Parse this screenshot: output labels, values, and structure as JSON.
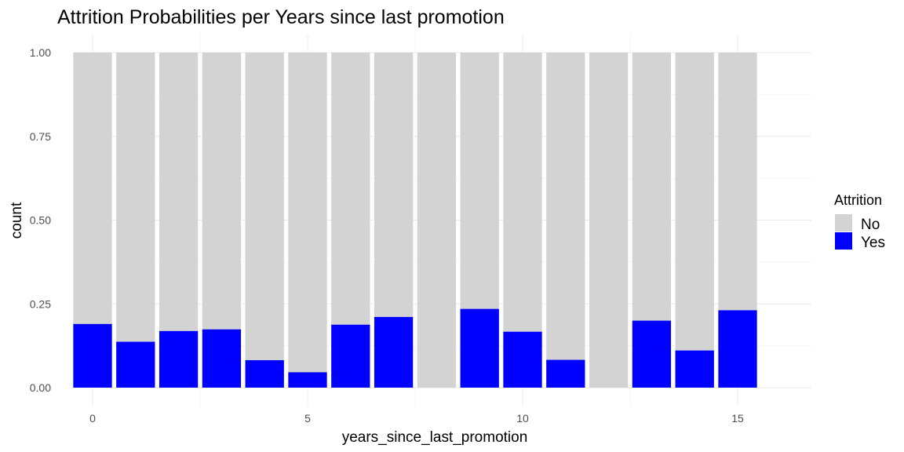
{
  "chart_data": {
    "type": "bar",
    "stacked": true,
    "title": "Attrition Probabilities per Years since last promotion",
    "xlabel": "years_since_last_promotion",
    "ylabel": "count",
    "xlim": [
      -0.5,
      15.5
    ],
    "ylim": [
      0,
      1
    ],
    "x_ticks": [
      0,
      5,
      10,
      15
    ],
    "y_ticks": [
      0,
      0.25,
      0.5,
      0.75,
      1
    ],
    "y_tick_labels": [
      "0.00",
      "0.25",
      "0.50",
      "0.75",
      "1.00"
    ],
    "grid": true,
    "legend": {
      "title": "Attrition",
      "position": "right",
      "entries": [
        {
          "label": "No",
          "color": "#d3d3d3"
        },
        {
          "label": "Yes",
          "color": "#0000ff"
        }
      ]
    },
    "x": [
      0,
      1,
      2,
      3,
      4,
      5,
      6,
      7,
      8,
      9,
      10,
      11,
      12,
      13,
      14,
      15
    ],
    "series": [
      {
        "name": "Yes",
        "color": "#0000ff",
        "values": [
          0.19,
          0.137,
          0.169,
          0.174,
          0.082,
          0.046,
          0.188,
          0.211,
          0.0,
          0.235,
          0.167,
          0.083,
          0.0,
          0.2,
          0.111,
          0.231
        ]
      },
      {
        "name": "No",
        "color": "#d3d3d3",
        "values": [
          0.81,
          0.863,
          0.831,
          0.826,
          0.918,
          0.954,
          0.812,
          0.789,
          1.0,
          0.765,
          0.833,
          0.917,
          1.0,
          0.8,
          0.889,
          0.769
        ]
      }
    ]
  }
}
